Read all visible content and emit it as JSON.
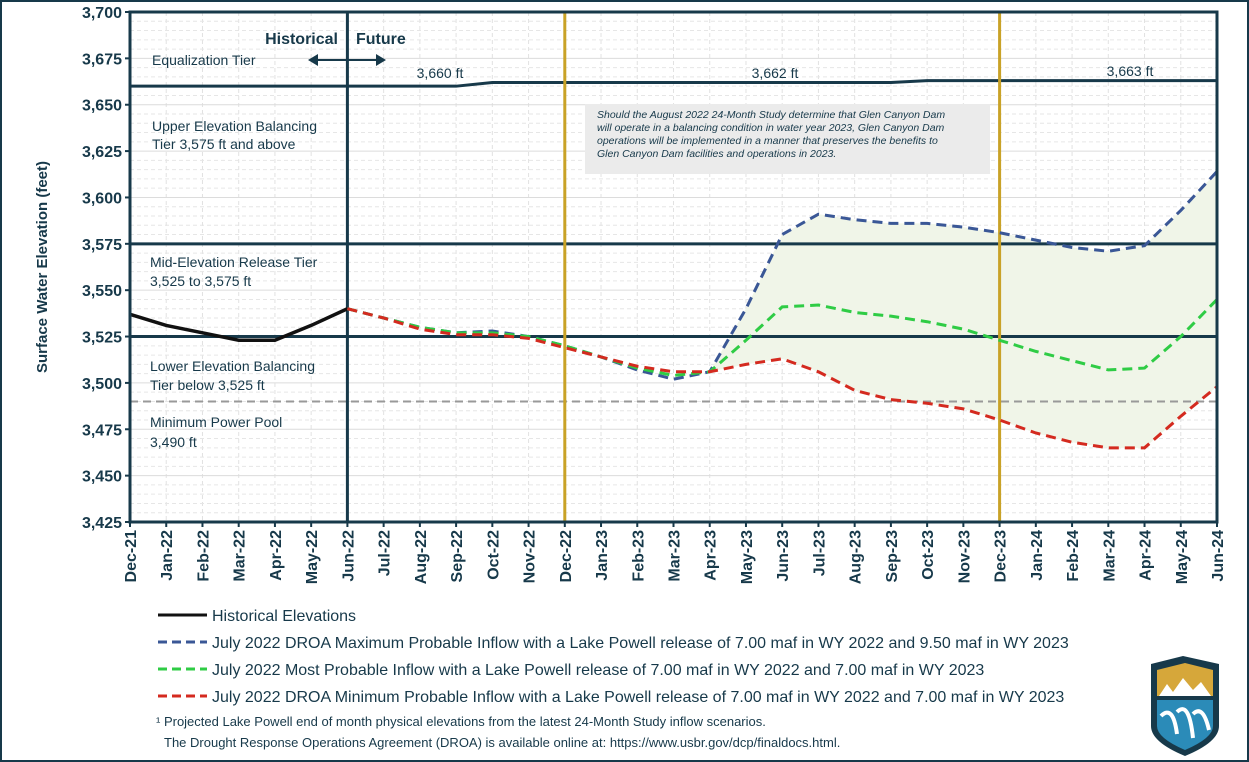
{
  "chart_data": {
    "type": "line",
    "y_axis_label": "Surface Water Elevation (feet)",
    "categories": [
      "Dec-21",
      "Jan-22",
      "Feb-22",
      "Mar-22",
      "Apr-22",
      "May-22",
      "Jun-22",
      "Jul-22",
      "Aug-22",
      "Sep-22",
      "Oct-22",
      "Nov-22",
      "Dec-22",
      "Jan-23",
      "Feb-23",
      "Mar-23",
      "Apr-23",
      "May-23",
      "Jun-23",
      "Jul-23",
      "Aug-23",
      "Sep-23",
      "Oct-23",
      "Nov-23",
      "Dec-23",
      "Jan-24",
      "Feb-24",
      "Mar-24",
      "Apr-24",
      "May-24",
      "Jun-24"
    ],
    "ylim": [
      3425,
      3700
    ],
    "yticks": [
      {
        "value": 3425,
        "label": "3,425"
      },
      {
        "value": 3450,
        "label": "3,450"
      },
      {
        "value": 3475,
        "label": "3,475"
      },
      {
        "value": 3500,
        "label": "3,500"
      },
      {
        "value": 3525,
        "label": "3,525"
      },
      {
        "value": 3550,
        "label": "3,550"
      },
      {
        "value": 3575,
        "label": "3,575"
      },
      {
        "value": 3600,
        "label": "3,600"
      },
      {
        "value": 3625,
        "label": "3,625"
      },
      {
        "value": 3650,
        "label": "3,650"
      },
      {
        "value": 3675,
        "label": "3,675"
      },
      {
        "value": 3700,
        "label": "3,700"
      }
    ],
    "series": [
      {
        "name": "Historical Elevations",
        "color": "#111111",
        "dashed": false,
        "values": [
          3537,
          3531,
          3527,
          3523,
          3523,
          3531,
          3540,
          null,
          null,
          null,
          null,
          null,
          null,
          null,
          null,
          null,
          null,
          null,
          null,
          null,
          null,
          null,
          null,
          null,
          null,
          null,
          null,
          null,
          null,
          null,
          null
        ]
      },
      {
        "name": "July 2022 DROA Maximum Probable Inflow with a Lake Powell release of 7.00 maf in WY 2022 and 9.50 maf in WY 2023",
        "color": "#3a5796",
        "dashed": true,
        "values": [
          null,
          null,
          null,
          null,
          null,
          null,
          3540,
          3535,
          3530,
          3527,
          3528,
          3525,
          3520,
          3514,
          3507,
          3502,
          3506,
          3540,
          3580,
          3591,
          3588,
          3586,
          3586,
          3584,
          3581,
          3577,
          3573,
          3571,
          3574,
          3593,
          3614
        ]
      },
      {
        "name": "July 2022 Most Probable Inflow with a Lake Powell release of 7.00 maf in WY 2022 and 7.00 maf in WY 2023",
        "color": "#2fcc45",
        "dashed": true,
        "values": [
          null,
          null,
          null,
          null,
          null,
          null,
          3540,
          3535,
          3530,
          3527,
          3527,
          3525,
          3520,
          3514,
          3508,
          3504,
          3506,
          3523,
          3541,
          3542,
          3538,
          3536,
          3533,
          3529,
          3523,
          3517,
          3512,
          3507,
          3508,
          3525,
          3545
        ]
      },
      {
        "name": "July 2022 DROA Minimum Probable Inflow with a Lake Powell release of 7.00 maf in WY 2022 and 7.00 maf in WY 2023",
        "color": "#d42a1f",
        "dashed": true,
        "values": [
          null,
          null,
          null,
          null,
          null,
          null,
          3540,
          3535,
          3529,
          3526,
          3526,
          3524,
          3519,
          3514,
          3509,
          3506,
          3506,
          3510,
          3513,
          3506,
          3496,
          3491,
          3489,
          3486,
          3480,
          3473,
          3468,
          3465,
          3465,
          3482,
          3498
        ]
      }
    ],
    "equalization_line": {
      "color": "#17394a",
      "values": [
        3660,
        3660,
        3660,
        3660,
        3660,
        3660,
        3660,
        3660,
        3660,
        3660,
        3662,
        3662,
        3662,
        3662,
        3662,
        3662,
        3662,
        3662,
        3662,
        3662,
        3662,
        3662,
        3663,
        3663,
        3663,
        3663,
        3663,
        3663,
        3663,
        3663,
        3663
      ],
      "labels": [
        "3,660 ft",
        "3,662 ft",
        "3,663 ft"
      ]
    },
    "tier_lines": [
      3575,
      3525
    ],
    "minimum_power_pool": 3490,
    "period_lines": [
      {
        "at": 6,
        "color": "#17394a"
      },
      {
        "at": 12,
        "color": "#c9a227"
      },
      {
        "at": 24,
        "color": "#c9a227"
      }
    ],
    "period_labels": [
      "Historical",
      "Future"
    ],
    "tier_annotations": [
      "Equalization Tier",
      "Upper Elevation Balancing",
      "Tier 3,575 ft and above",
      "Mid-Elevation Release Tier",
      "3,525 to 3,575 ft",
      "Lower Elevation Balancing",
      "Tier below 3,525 ft",
      "Minimum Power Pool",
      "3,490 ft"
    ],
    "note": [
      "Should the August 2022 24-Month Study determine that Glen Canyon Dam",
      "will operate in a balancing condition in water year 2023, Glen Canyon Dam",
      "operations will be implemented in a manner that preserves the benefits to",
      "Glen Canyon Dam facilities and operations in 2023."
    ],
    "footnotes": [
      "¹ Projected Lake Powell end of month physical elevations from the latest 24-Month Study inflow scenarios.",
      "The Drought Response Operations Agreement (DROA) is available online at: https://www.usbr.gov/dcp/finaldocs.html."
    ]
  }
}
